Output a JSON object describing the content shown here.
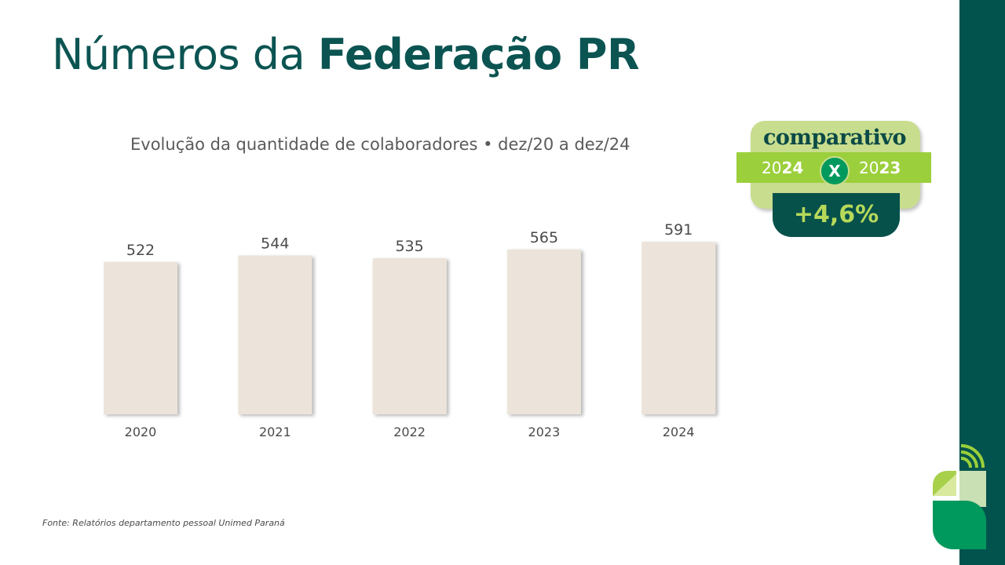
{
  "header": {
    "title_regular": "Números da",
    "title_bold": "Federação PR"
  },
  "chart_data": {
    "type": "bar",
    "title": "Evolução da quantidade de colaboradores • dez/20 a dez/24",
    "categories": [
      "2020",
      "2021",
      "2022",
      "2023",
      "2024"
    ],
    "values": [
      522,
      544,
      535,
      565,
      591
    ],
    "xlabel": "",
    "ylabel": "",
    "ylim": [
      0,
      600
    ],
    "grid": false,
    "bar_color": "#ece4da"
  },
  "badge": {
    "word": "comparativo",
    "year_a_prefix": "20",
    "year_a_suffix": "24",
    "year_b_prefix": "20",
    "year_b_suffix": "23",
    "versus": "X",
    "change": "+4,6%"
  },
  "footer": {
    "source": "Fonte: Relatórios departamento pessoal Unimed Paraná"
  },
  "colors": {
    "primary": "#0b5452",
    "band": "#02534d",
    "accent_green": "#00995d",
    "light_green": "#c8dd8e",
    "lime": "#9ccf3c"
  }
}
